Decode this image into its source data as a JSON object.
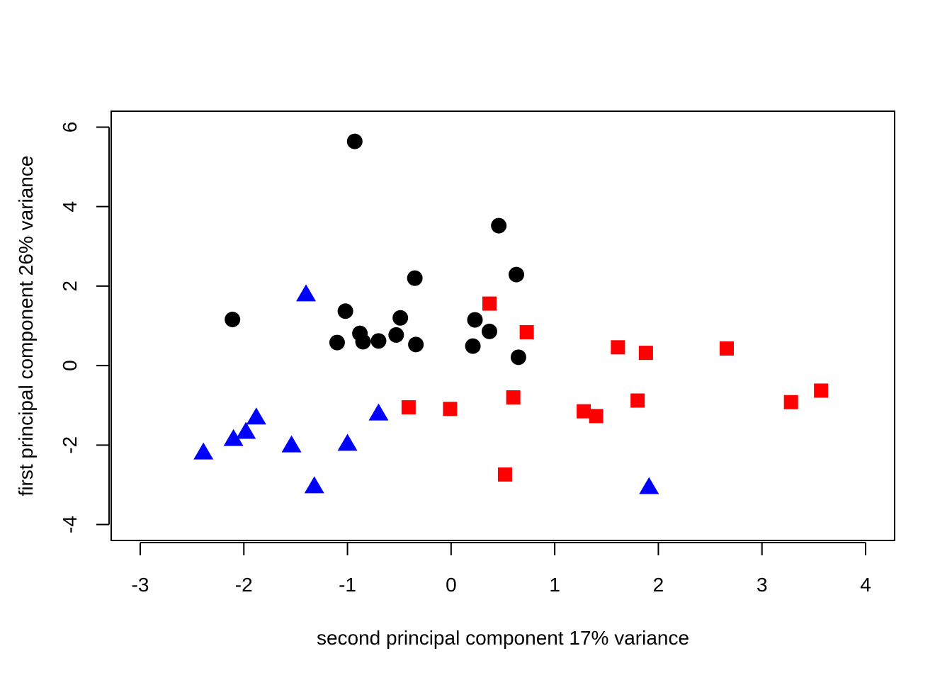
{
  "chart_data": {
    "type": "scatter",
    "title": "",
    "xlabel": "second principal component 17% variance",
    "ylabel": "first principal component 26% variance",
    "xlim": [
      -3.28,
      4.28
    ],
    "ylim": [
      -4.4,
      6.4
    ],
    "xticks": [
      -3,
      -2,
      -1,
      0,
      1,
      2,
      3,
      4
    ],
    "yticks": [
      -4,
      -2,
      0,
      2,
      4,
      6
    ],
    "xtick_labels": [
      "-3",
      "-2",
      "-1",
      "0",
      "1",
      "2",
      "3",
      "4"
    ],
    "ytick_labels": [
      "-4",
      "-2",
      "0",
      "2",
      "4",
      "6"
    ],
    "grid": false,
    "legend": "none",
    "series": [
      {
        "marker": "circle",
        "color": "#000000",
        "points": [
          [
            -0.93,
            5.64
          ],
          [
            0.46,
            3.52
          ],
          [
            0.63,
            2.29
          ],
          [
            -0.35,
            2.2
          ],
          [
            -2.11,
            1.16
          ],
          [
            -1.02,
            1.37
          ],
          [
            -0.49,
            1.2
          ],
          [
            0.23,
            1.15
          ],
          [
            -0.88,
            0.81
          ],
          [
            0.37,
            0.86
          ],
          [
            -0.53,
            0.77
          ],
          [
            -1.1,
            0.58
          ],
          [
            -0.85,
            0.6
          ],
          [
            -0.7,
            0.62
          ],
          [
            -0.34,
            0.53
          ],
          [
            0.21,
            0.49
          ],
          [
            0.65,
            0.21
          ]
        ]
      },
      {
        "marker": "square",
        "color": "#ff0000",
        "points": [
          [
            0.37,
            1.56
          ],
          [
            0.73,
            0.84
          ],
          [
            1.61,
            0.46
          ],
          [
            1.88,
            0.32
          ],
          [
            2.66,
            0.43
          ],
          [
            -0.41,
            -1.05
          ],
          [
            -0.01,
            -1.09
          ],
          [
            0.6,
            -0.8
          ],
          [
            1.28,
            -1.15
          ],
          [
            1.4,
            -1.27
          ],
          [
            1.8,
            -0.88
          ],
          [
            3.28,
            -0.92
          ],
          [
            3.57,
            -0.63
          ],
          [
            0.52,
            -2.74
          ]
        ]
      },
      {
        "marker": "triangle",
        "color": "#0000ff",
        "points": [
          [
            -1.4,
            1.78
          ],
          [
            -0.7,
            -1.22
          ],
          [
            -1.88,
            -1.32
          ],
          [
            -1.98,
            -1.68
          ],
          [
            -2.1,
            -1.86
          ],
          [
            -2.39,
            -2.2
          ],
          [
            -1.54,
            -2.02
          ],
          [
            -1.0,
            -1.98
          ],
          [
            -1.32,
            -3.05
          ],
          [
            1.91,
            -3.07
          ]
        ]
      }
    ]
  }
}
